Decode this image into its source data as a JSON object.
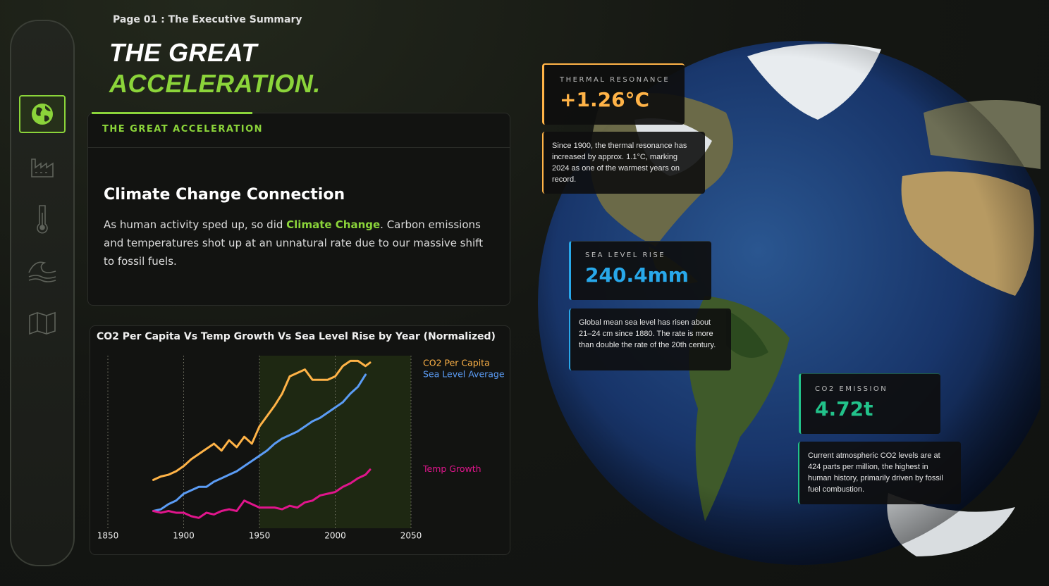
{
  "header": {
    "page": "Page 01 : The Executive Summary",
    "title_line1": "THE GREAT",
    "title_line2": "ACCELERATION."
  },
  "summary_card": {
    "tab": "THE GREAT ACCELERATION",
    "heading": "Climate Change Connection",
    "text_before": "As human activity sped up, so did ",
    "highlight": "Climate Change",
    "text_after": ". Carbon emissions and temperatures shot up at an unnatural rate due to our massive shift to fossil fuels."
  },
  "metrics": [
    {
      "label": "THERMAL RESONANCE",
      "value": "+1.26°C",
      "description": "Since 1900, the thermal resonance has increased by approx. 1.1°C, marking 2024 as one of the warmest years on record."
    },
    {
      "label": "SEA LEVEL RISE",
      "value": "240.4mm",
      "description": "Global mean sea level has risen about 21–24 cm since 1880. The rate is more than double the rate of the 20th century."
    },
    {
      "label": "CO2 EMISSION",
      "value": "4.72t",
      "description": "Current atmospheric CO2 levels are at 424 parts per million, the highest in human history, primarily driven by fossil fuel combustion."
    }
  ],
  "chart_data": {
    "type": "line",
    "title": "CO2 Per Capita Vs Temp Growth Vs Sea Level Rise by Year (Normalized)",
    "x": [
      1880,
      1885,
      1890,
      1895,
      1900,
      1905,
      1910,
      1915,
      1920,
      1925,
      1930,
      1935,
      1940,
      1945,
      1950,
      1955,
      1960,
      1965,
      1970,
      1975,
      1980,
      1985,
      1990,
      1995,
      2000,
      2005,
      2010,
      2015,
      2020,
      2023
    ],
    "xlim": [
      1850,
      2050
    ],
    "xticks": [
      1850,
      1900,
      1950,
      2000,
      2050
    ],
    "ylim": [
      0,
      1
    ],
    "grid": "x",
    "highlight_xlim": [
      1950,
      2050
    ],
    "highlight_color": "#1e2812",
    "series": [
      {
        "name": "CO2 Per Capita",
        "color": "#ffb347",
        "values": [
          0.28,
          0.3,
          0.31,
          0.33,
          0.36,
          0.4,
          0.43,
          0.46,
          0.49,
          0.45,
          0.51,
          0.47,
          0.53,
          0.49,
          0.59,
          0.65,
          0.71,
          0.78,
          0.88,
          0.9,
          0.92,
          0.86,
          0.86,
          0.86,
          0.88,
          0.94,
          0.97,
          0.97,
          0.94,
          0.96
        ]
      },
      {
        "name": "Sea Level Average",
        "color": "#5b9cf5",
        "values": [
          0.1,
          0.11,
          0.14,
          0.16,
          0.2,
          0.22,
          0.24,
          0.24,
          0.27,
          0.29,
          0.31,
          0.33,
          0.36,
          0.39,
          0.42,
          0.45,
          0.49,
          0.52,
          0.54,
          0.56,
          0.59,
          0.62,
          0.64,
          0.67,
          0.7,
          0.73,
          0.78,
          0.82,
          0.89,
          null
        ]
      },
      {
        "name": "Temp Growth",
        "color": "#e0158c",
        "values": [
          0.1,
          0.09,
          0.1,
          0.09,
          0.09,
          0.07,
          0.06,
          0.09,
          0.08,
          0.1,
          0.11,
          0.1,
          0.16,
          0.14,
          0.12,
          0.12,
          0.12,
          0.11,
          0.13,
          0.12,
          0.15,
          0.16,
          0.19,
          0.2,
          0.21,
          0.24,
          0.26,
          0.29,
          0.31,
          0.34
        ]
      }
    ]
  }
}
